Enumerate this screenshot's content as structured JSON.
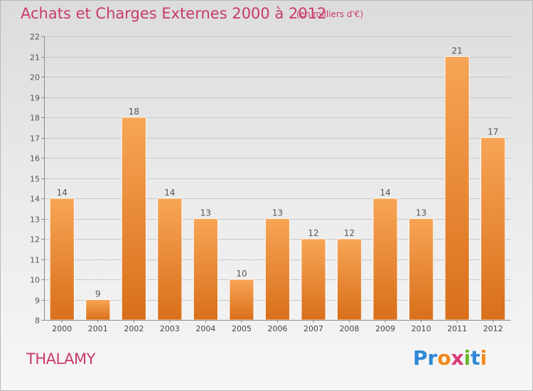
{
  "header": {
    "title": "Achats et Charges Externes 2000 à 2012",
    "subtitle": "(en milliers d'€)"
  },
  "commune": "THALAMY",
  "logo": {
    "text": "Proxiti",
    "letters": [
      {
        "ch": "P",
        "color": "#2f88d6"
      },
      {
        "ch": "r",
        "color": "#2f88d6"
      },
      {
        "ch": "o",
        "color": "#f08a1c"
      },
      {
        "ch": "x",
        "color": "#d93a7a"
      },
      {
        "ch": "i",
        "color": "#6ab52c"
      },
      {
        "ch": "t",
        "color": "#2f88d6"
      },
      {
        "ch": "i",
        "color": "#f08a1c"
      }
    ]
  },
  "colors": {
    "bar_top": "#f7a556",
    "bar_bottom": "#d96f1a",
    "accent": "#c83a6a"
  },
  "chart_data": {
    "type": "bar",
    "title": "Achats et Charges Externes 2000 à 2012",
    "subtitle": "(en milliers d'€)",
    "categories": [
      "2000",
      "2001",
      "2002",
      "2003",
      "2004",
      "2005",
      "2006",
      "2007",
      "2008",
      "2009",
      "2010",
      "2011",
      "2012"
    ],
    "values": [
      14,
      9,
      18,
      14,
      13,
      10,
      13,
      12,
      12,
      14,
      13,
      21,
      17
    ],
    "data_labels": [
      "14",
      "9",
      "18",
      "14",
      "13",
      "10",
      "13",
      "12",
      "12",
      "14",
      "13",
      "21",
      "17"
    ],
    "ylim": [
      8,
      22
    ],
    "yticks": [
      8,
      9,
      10,
      11,
      12,
      13,
      14,
      15,
      16,
      17,
      18,
      19,
      20,
      21,
      22
    ],
    "grid": true,
    "legend": "none",
    "xlabel": "",
    "ylabel": ""
  }
}
